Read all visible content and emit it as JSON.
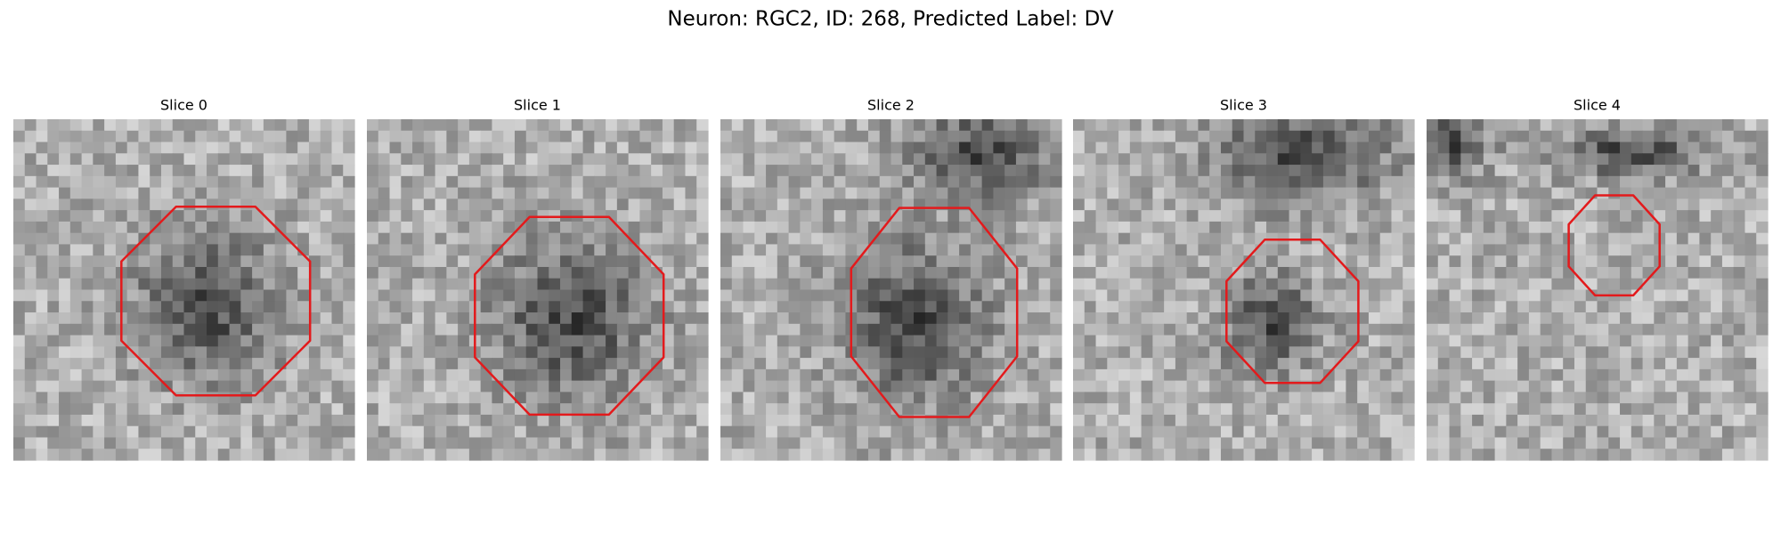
{
  "header": {
    "title": "Neuron: RGC2, ID: 268, Predicted Label: DV"
  },
  "panels": [
    {
      "title": "Slice 0"
    },
    {
      "title": "Slice 1"
    },
    {
      "title": "Slice 2"
    },
    {
      "title": "Slice 3"
    },
    {
      "title": "Slice 4"
    }
  ]
}
